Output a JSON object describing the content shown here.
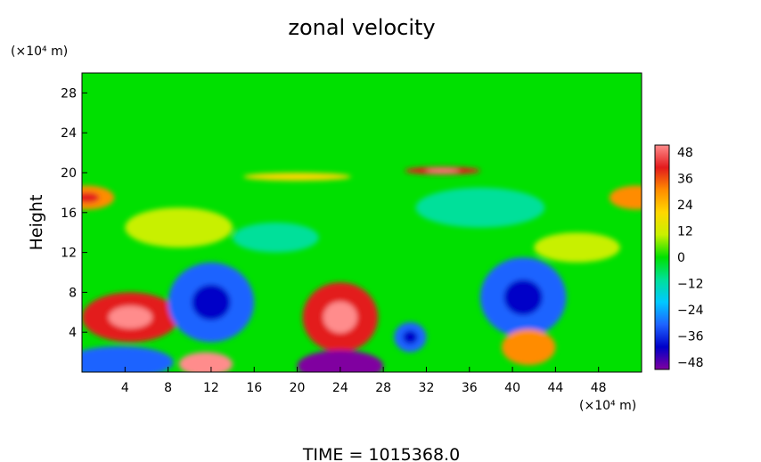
{
  "chart_data": {
    "type": "heatmap",
    "title": "zonal velocity",
    "ylabel": "Height",
    "x_unit_label": "(×10⁴ m)",
    "y_unit_label": "(×10⁴ m)",
    "footer": "TIME = 1015368.0",
    "xlim": [
      0,
      52
    ],
    "ylim": [
      0,
      30
    ],
    "x_ticks": [
      "4",
      "8",
      "12",
      "16",
      "20",
      "24",
      "28",
      "32",
      "36",
      "40",
      "44",
      "48"
    ],
    "y_ticks": [
      "4",
      "8",
      "12",
      "16",
      "20",
      "24",
      "28"
    ],
    "colorbar": {
      "range": [
        -48,
        48
      ],
      "tick_labels": [
        "48",
        "36",
        "24",
        "12",
        "0",
        "−12",
        "−24",
        "−36",
        "−48"
      ],
      "colors": [
        "#ff8c8c",
        "#e31a1c",
        "#ff8c00",
        "#ffd700",
        "#c8f000",
        "#00e000",
        "#00e09a",
        "#00c8ff",
        "#1e64ff",
        "#0000c8",
        "#8000a0"
      ]
    },
    "field": {
      "background": 0,
      "features": [
        {
          "x": 4.5,
          "y": 5.5,
          "rx": 4.5,
          "ry": 2.5,
          "value": 36
        },
        {
          "x": 0.5,
          "y": 17.5,
          "rx": 2.5,
          "ry": 1.2,
          "value": 30
        },
        {
          "x": 51.5,
          "y": 17.5,
          "rx": 2.5,
          "ry": 1.2,
          "value": 28
        },
        {
          "x": 12,
          "y": 7,
          "rx": 4,
          "ry": 4,
          "value": -30
        },
        {
          "x": 11.5,
          "y": 0.8,
          "rx": 2.5,
          "ry": 1.2,
          "value": 46
        },
        {
          "x": 3.5,
          "y": 1.0,
          "rx": 5,
          "ry": 1.6,
          "value": -28
        },
        {
          "x": 24,
          "y": 5.5,
          "rx": 3.5,
          "ry": 3.5,
          "value": 36
        },
        {
          "x": 24,
          "y": 0.6,
          "rx": 4,
          "ry": 1.6,
          "value": -46
        },
        {
          "x": 30.5,
          "y": 3.5,
          "rx": 1.5,
          "ry": 1.5,
          "value": -30
        },
        {
          "x": 41,
          "y": 7.5,
          "rx": 4,
          "ry": 4,
          "value": -30
        },
        {
          "x": 41.5,
          "y": 2.5,
          "rx": 2.5,
          "ry": 1.8,
          "value": 28
        },
        {
          "x": 33.5,
          "y": 20.2,
          "rx": 3.5,
          "ry": 0.4,
          "value": 36
        },
        {
          "x": 20,
          "y": 19.6,
          "rx": 5,
          "ry": 0.4,
          "value": 20
        },
        {
          "x": 9,
          "y": 14.5,
          "rx": 5,
          "ry": 2,
          "value": 12
        },
        {
          "x": 37,
          "y": 16.5,
          "rx": 6,
          "ry": 2,
          "value": -12
        },
        {
          "x": 18,
          "y": 13.5,
          "rx": 4,
          "ry": 1.5,
          "value": -10
        },
        {
          "x": 46,
          "y": 12.5,
          "rx": 4,
          "ry": 1.5,
          "value": 10
        }
      ]
    }
  }
}
